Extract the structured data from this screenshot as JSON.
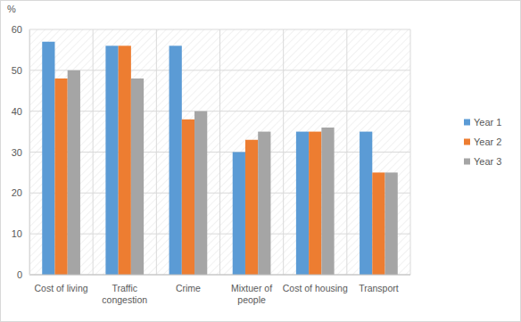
{
  "chart_data": {
    "type": "bar",
    "y_label": "%",
    "categories": [
      "Cost of living",
      "Traffic congestion",
      "Crime",
      "Mixtuer of people",
      "Cost of housing",
      "Transport"
    ],
    "series": [
      {
        "name": "Year 1",
        "color": "#5b9bd5",
        "values": [
          57,
          56,
          56,
          30,
          35,
          35
        ]
      },
      {
        "name": "Year 2",
        "color": "#ed7d31",
        "values": [
          48,
          56,
          38,
          33,
          35,
          25
        ]
      },
      {
        "name": "Year 3",
        "color": "#a5a5a5",
        "values": [
          50,
          48,
          40,
          35,
          36,
          25
        ]
      }
    ],
    "ylim": [
      0,
      60
    ],
    "yticks": [
      0,
      10,
      20,
      30,
      40,
      50,
      60
    ],
    "grid": true,
    "legend": "right"
  }
}
